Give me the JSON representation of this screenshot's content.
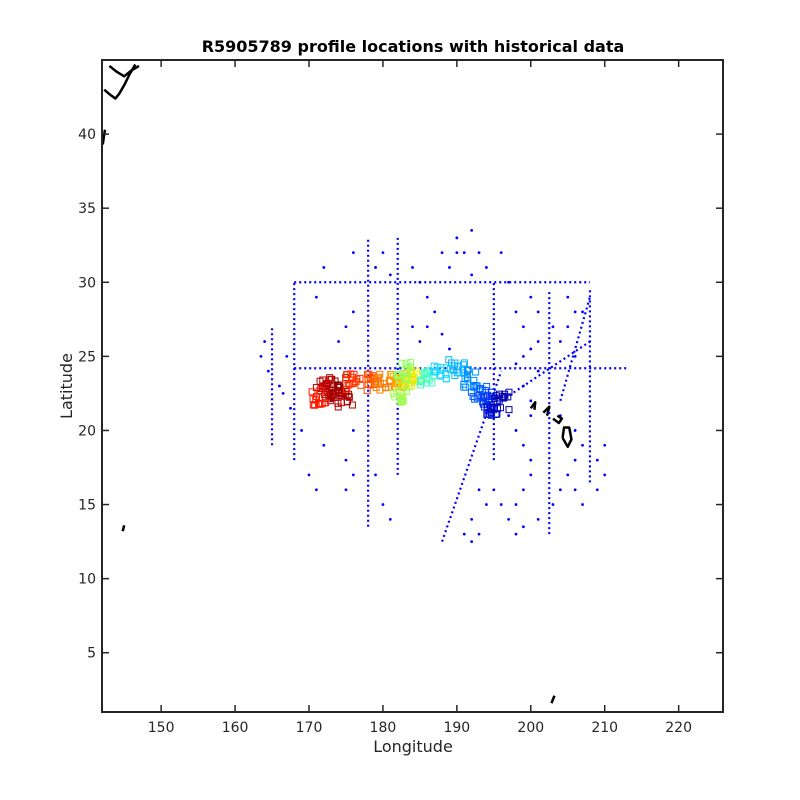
{
  "chart_data": {
    "type": "scatter",
    "title": "R5905789 profile locations with historical data",
    "xlabel": "Longitude",
    "ylabel": "Latitude",
    "xlim": [
      142,
      226
    ],
    "ylim": [
      1,
      45
    ],
    "xticks": [
      "150",
      "160",
      "170",
      "180",
      "190",
      "200",
      "210",
      "220"
    ],
    "yticks": [
      "5",
      "10",
      "15",
      "20",
      "25",
      "30",
      "35",
      "40"
    ],
    "grid": false,
    "legend": "none",
    "colors": {
      "historical": "#0000ff",
      "coast": "#000000"
    },
    "historical_lines": [
      {
        "x": [
          168,
          208
        ],
        "y": [
          30,
          30
        ]
      },
      {
        "x": [
          168,
          213
        ],
        "y": [
          24.2,
          24.2
        ]
      },
      {
        "x": [
          168,
          168
        ],
        "y": [
          18,
          30
        ]
      },
      {
        "x": [
          178,
          178
        ],
        "y": [
          13.5,
          33
        ]
      },
      {
        "x": [
          182,
          182
        ],
        "y": [
          17,
          33
        ]
      },
      {
        "x": [
          195,
          195
        ],
        "y": [
          18,
          30
        ]
      },
      {
        "x": [
          208,
          208
        ],
        "y": [
          16.5,
          29.5
        ]
      },
      {
        "x": [
          165,
          165
        ],
        "y": [
          19,
          27
        ]
      },
      {
        "x": [
          188,
          196
        ],
        "y": [
          12.5,
          24
        ]
      },
      {
        "x": [
          196,
          208
        ],
        "y": [
          22,
          26
        ]
      },
      {
        "x": [
          204,
          208
        ],
        "y": [
          22,
          29
        ]
      },
      {
        "x": [
          202.5,
          202.5
        ],
        "y": [
          13,
          29.5
        ]
      }
    ],
    "historical_points": [
      [
        164,
        26
      ],
      [
        163.5,
        25
      ],
      [
        164.5,
        24
      ],
      [
        166,
        23
      ],
      [
        167,
        25
      ],
      [
        166.5,
        22.5
      ],
      [
        167.5,
        21.5
      ],
      [
        169,
        20
      ],
      [
        170,
        17
      ],
      [
        171,
        16
      ],
      [
        172,
        19
      ],
      [
        173,
        22
      ],
      [
        176,
        20
      ],
      [
        175,
        18
      ],
      [
        176,
        17
      ],
      [
        175,
        16
      ],
      [
        176,
        32
      ],
      [
        172,
        31
      ],
      [
        171,
        29
      ],
      [
        175,
        27
      ],
      [
        176,
        28
      ],
      [
        174,
        26
      ],
      [
        184,
        31
      ],
      [
        185,
        30
      ],
      [
        186,
        29
      ],
      [
        187,
        28
      ],
      [
        186,
        27
      ],
      [
        188,
        32
      ],
      [
        189,
        31
      ],
      [
        190,
        33
      ],
      [
        191,
        32
      ],
      [
        192,
        30.5
      ],
      [
        193,
        32
      ],
      [
        194,
        31
      ],
      [
        192,
        33.5
      ],
      [
        190,
        32
      ],
      [
        196,
        32
      ],
      [
        197,
        30
      ],
      [
        198,
        28
      ],
      [
        199,
        27
      ],
      [
        200,
        29
      ],
      [
        201,
        28
      ],
      [
        203,
        27
      ],
      [
        205,
        29
      ],
      [
        206,
        28
      ],
      [
        205,
        27
      ],
      [
        204,
        26
      ],
      [
        206,
        25
      ],
      [
        207,
        28
      ],
      [
        199,
        25
      ],
      [
        198,
        24.5
      ],
      [
        197,
        21
      ],
      [
        198,
        20
      ],
      [
        199,
        19
      ],
      [
        200,
        18
      ],
      [
        200,
        17
      ],
      [
        199,
        16
      ],
      [
        198,
        15
      ],
      [
        197,
        14
      ],
      [
        196,
        15
      ],
      [
        195,
        16
      ],
      [
        194,
        15
      ],
      [
        193,
        16
      ],
      [
        192,
        14
      ],
      [
        191,
        13
      ],
      [
        192,
        12.5
      ],
      [
        193,
        13
      ],
      [
        198,
        13
      ],
      [
        199,
        13.5
      ],
      [
        201,
        14
      ],
      [
        203,
        15
      ],
      [
        204,
        16
      ],
      [
        205,
        17
      ],
      [
        206,
        18
      ],
      [
        207,
        19
      ],
      [
        206,
        20
      ],
      [
        204,
        21
      ],
      [
        200,
        22
      ],
      [
        200,
        21
      ],
      [
        199,
        23
      ],
      [
        201,
        24
      ],
      [
        210,
        17
      ],
      [
        209,
        18
      ],
      [
        210,
        19
      ],
      [
        209,
        16
      ],
      [
        207,
        15
      ],
      [
        206,
        16
      ],
      [
        201,
        26
      ],
      [
        200,
        25.5
      ],
      [
        180,
        32
      ],
      [
        179,
        31
      ],
      [
        181,
        30.5
      ],
      [
        184,
        27
      ],
      [
        185,
        26
      ],
      [
        188,
        26.5
      ],
      [
        189,
        25.5
      ],
      [
        179,
        17
      ],
      [
        180,
        15
      ],
      [
        181,
        14
      ]
    ],
    "float_track": [
      {
        "lon": 174,
        "lat": 23,
        "color": "#8b0000"
      },
      {
        "lon": 173,
        "lat": 22.5,
        "color": "#a50000"
      },
      {
        "lon": 172,
        "lat": 23,
        "color": "#c00000"
      },
      {
        "lon": 175,
        "lat": 22,
        "color": "#b00000"
      },
      {
        "lon": 171.5,
        "lat": 22.3,
        "color": "#ff1a00"
      },
      {
        "lon": 176,
        "lat": 23.3,
        "color": "#ff3000"
      },
      {
        "lon": 178,
        "lat": 23.2,
        "color": "#ff5000"
      },
      {
        "lon": 180,
        "lat": 23.3,
        "color": "#ff7a00"
      },
      {
        "lon": 182,
        "lat": 23.5,
        "color": "#ffa000"
      },
      {
        "lon": 183,
        "lat": 23.3,
        "color": "#ffc800"
      },
      {
        "lon": 184,
        "lat": 23.5,
        "color": "#e8f000"
      },
      {
        "lon": 182.5,
        "lat": 22.5,
        "color": "#a0ff50"
      },
      {
        "lon": 183,
        "lat": 24,
        "color": "#90ff60"
      },
      {
        "lon": 186,
        "lat": 23.5,
        "color": "#40ffc0"
      },
      {
        "lon": 188,
        "lat": 24,
        "color": "#20d8ff"
      },
      {
        "lon": 190,
        "lat": 24.2,
        "color": "#10b8ff"
      },
      {
        "lon": 192,
        "lat": 23.5,
        "color": "#0090ff"
      },
      {
        "lon": 193,
        "lat": 22.5,
        "color": "#0060ff"
      },
      {
        "lon": 194,
        "lat": 22,
        "color": "#0030f0"
      },
      {
        "lon": 195,
        "lat": 21.5,
        "color": "#0010d0"
      },
      {
        "lon": 196,
        "lat": 22,
        "color": "#0000b0"
      }
    ],
    "coastlines": [
      {
        "x": [
          142.3,
          143,
          143.8,
          144.3,
          145,
          145.7,
          146.5
        ],
        "y": [
          43,
          42.7,
          42.4,
          42.7,
          43.3,
          44,
          44.7
        ]
      },
      {
        "x": [
          142.1,
          142.4
        ],
        "y": [
          39.3,
          40.3
        ]
      },
      {
        "x": [
          143,
          144,
          145,
          146,
          147
        ],
        "y": [
          44.6,
          44.2,
          43.9,
          44.3,
          44.6
        ]
      },
      {
        "x": [
          144.8,
          145
        ],
        "y": [
          13.2,
          13.6
        ]
      },
      {
        "x": [
          202.8,
          203.2
        ],
        "y": [
          1.6,
          2.1
        ]
      },
      {
        "x": [
          200,
          200.6,
          200.5
        ],
        "y": [
          21.5,
          21.9,
          21.4
        ]
      },
      {
        "x": [
          201.7,
          202.5,
          202.2
        ],
        "y": [
          21.2,
          21.6,
          21
        ]
      },
      {
        "x": [
          203,
          203.8,
          204.2,
          203.6
        ],
        "y": [
          20.8,
          20.5,
          20.8,
          21
        ]
      },
      {
        "x": [
          204.3,
          205,
          205.5,
          205.2,
          204.5,
          204.3
        ],
        "y": [
          19.5,
          18.9,
          19.4,
          20.2,
          20.2,
          19.5
        ]
      }
    ]
  }
}
